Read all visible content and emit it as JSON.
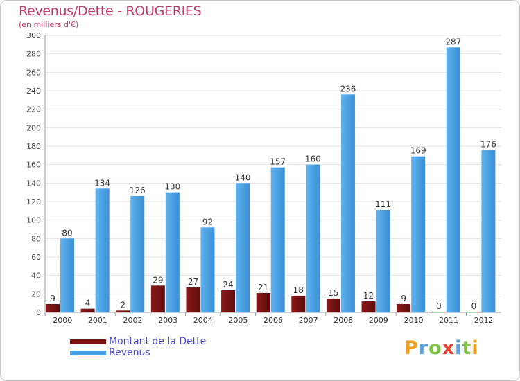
{
  "chart_data": {
    "type": "bar",
    "title": "Revenus/Dette - ROUGERIES",
    "subtitle": "(en milliers d'€)",
    "categories": [
      "2000",
      "2001",
      "2002",
      "2003",
      "2004",
      "2005",
      "2006",
      "2007",
      "2008",
      "2009",
      "2010",
      "2011",
      "2012"
    ],
    "series": [
      {
        "name": "Montant de la Dette",
        "color": "#7a1010",
        "values": [
          9,
          4,
          2,
          29,
          27,
          24,
          21,
          18,
          15,
          12,
          9,
          0,
          0
        ]
      },
      {
        "name": "Revenus",
        "color": "#4aa3e6",
        "values": [
          80,
          134,
          126,
          130,
          92,
          140,
          157,
          160,
          236,
          111,
          169,
          287,
          176
        ]
      }
    ],
    "ylim": [
      0,
      300
    ],
    "ytick_step": 20,
    "grid": true,
    "legend": "bottom-left"
  },
  "brand": {
    "letters": [
      "P",
      "r",
      "o",
      "x",
      "i",
      "t",
      "i"
    ],
    "colors": [
      "#f0a020",
      "#5aa0e0",
      "#7cc243",
      "#e8412b",
      "#5aa0e0",
      "#7cc243",
      "#f0a020"
    ]
  }
}
